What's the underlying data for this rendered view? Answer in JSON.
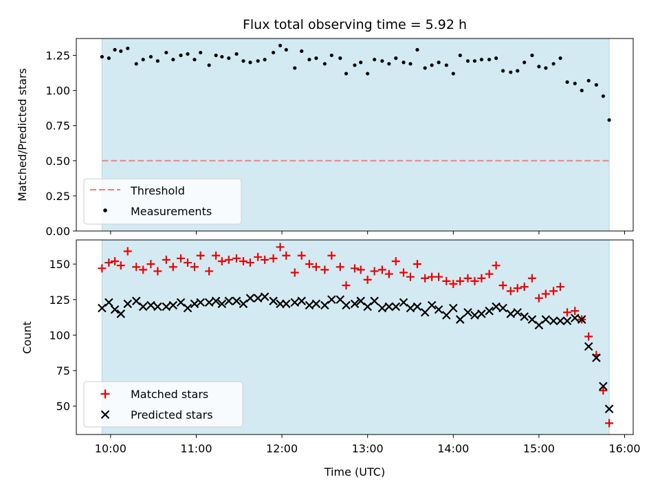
{
  "chart_data": [
    {
      "type": "scatter",
      "title": "Flux total observing time = 5.92 h",
      "xlabel": "",
      "ylabel": "Matched/Predicted stars",
      "xlim": [
        9.6,
        16.1
      ],
      "ylim": [
        0,
        1.37
      ],
      "x_ticks": [
        {
          "value": 10,
          "label": "10:00"
        },
        {
          "value": 11,
          "label": "11:00"
        },
        {
          "value": 12,
          "label": "12:00"
        },
        {
          "value": 13,
          "label": "13:00"
        },
        {
          "value": 14,
          "label": "14:00"
        },
        {
          "value": 15,
          "label": "15:00"
        },
        {
          "value": 16,
          "label": "16:00"
        }
      ],
      "y_ticks": [
        {
          "value": 0,
          "label": "0.00"
        },
        {
          "value": 0.25,
          "label": "0.25"
        },
        {
          "value": 0.5,
          "label": "0.50"
        },
        {
          "value": 0.75,
          "label": "0.75"
        },
        {
          "value": 1.0,
          "label": "1.00"
        },
        {
          "value": 1.25,
          "label": "1.25"
        }
      ],
      "observing_span": [
        9.9,
        15.82
      ],
      "threshold": {
        "name": "Threshold",
        "value": 0.5,
        "color": "#f08080"
      },
      "legend_position": "lower-left",
      "series": [
        {
          "name": "Measurements",
          "marker": "dot",
          "color": "#000000",
          "x": [
            9.9,
            9.98,
            10.05,
            10.12,
            10.2,
            10.3,
            10.38,
            10.47,
            10.55,
            10.65,
            10.73,
            10.82,
            10.9,
            10.98,
            11.05,
            11.15,
            11.23,
            11.3,
            11.38,
            11.47,
            11.55,
            11.63,
            11.72,
            11.8,
            11.9,
            11.98,
            12.05,
            12.15,
            12.23,
            12.32,
            12.4,
            12.5,
            12.58,
            12.68,
            12.75,
            12.85,
            12.92,
            13.0,
            13.08,
            13.17,
            13.25,
            13.33,
            13.42,
            13.5,
            13.58,
            13.67,
            13.75,
            13.83,
            13.92,
            14.0,
            14.08,
            14.17,
            14.25,
            14.33,
            14.42,
            14.5,
            14.58,
            14.67,
            14.75,
            14.83,
            14.92,
            15.0,
            15.08,
            15.17,
            15.25,
            15.33,
            15.42,
            15.5,
            15.58,
            15.67,
            15.75,
            15.82
          ],
          "y": [
            1.24,
            1.23,
            1.29,
            1.28,
            1.3,
            1.19,
            1.22,
            1.24,
            1.21,
            1.27,
            1.22,
            1.25,
            1.26,
            1.22,
            1.27,
            1.18,
            1.25,
            1.24,
            1.23,
            1.26,
            1.21,
            1.2,
            1.21,
            1.22,
            1.27,
            1.32,
            1.29,
            1.16,
            1.28,
            1.22,
            1.23,
            1.19,
            1.25,
            1.23,
            1.12,
            1.18,
            1.2,
            1.12,
            1.22,
            1.21,
            1.19,
            1.23,
            1.2,
            1.19,
            1.29,
            1.16,
            1.18,
            1.2,
            1.18,
            1.12,
            1.25,
            1.21,
            1.21,
            1.22,
            1.22,
            1.23,
            1.14,
            1.13,
            1.14,
            1.2,
            1.25,
            1.17,
            1.16,
            1.19,
            1.23,
            1.06,
            1.05,
            1.0,
            1.07,
            1.04,
            0.96,
            0.79
          ]
        }
      ]
    },
    {
      "type": "scatter",
      "title": "",
      "xlabel": "Time (UTC)",
      "ylabel": "Count",
      "xlim": [
        9.6,
        16.1
      ],
      "ylim": [
        30,
        167
      ],
      "x_ticks": [
        {
          "value": 10,
          "label": "10:00"
        },
        {
          "value": 11,
          "label": "11:00"
        },
        {
          "value": 12,
          "label": "12:00"
        },
        {
          "value": 13,
          "label": "13:00"
        },
        {
          "value": 14,
          "label": "14:00"
        },
        {
          "value": 15,
          "label": "15:00"
        },
        {
          "value": 16,
          "label": "16:00"
        }
      ],
      "y_ticks": [
        {
          "value": 50,
          "label": "50"
        },
        {
          "value": 75,
          "label": "75"
        },
        {
          "value": 100,
          "label": "100"
        },
        {
          "value": 125,
          "label": "125"
        },
        {
          "value": 150,
          "label": "150"
        }
      ],
      "observing_span": [
        9.9,
        15.82
      ],
      "legend_position": "lower-left",
      "series": [
        {
          "name": "Matched stars",
          "marker": "plus",
          "color": "#ee0000",
          "x": [
            9.9,
            9.98,
            10.05,
            10.12,
            10.2,
            10.3,
            10.38,
            10.47,
            10.55,
            10.65,
            10.73,
            10.82,
            10.9,
            10.98,
            11.05,
            11.15,
            11.23,
            11.3,
            11.38,
            11.47,
            11.55,
            11.63,
            11.72,
            11.8,
            11.9,
            11.98,
            12.05,
            12.15,
            12.23,
            12.32,
            12.4,
            12.5,
            12.58,
            12.68,
            12.75,
            12.85,
            12.92,
            13.0,
            13.08,
            13.17,
            13.25,
            13.33,
            13.42,
            13.5,
            13.58,
            13.67,
            13.75,
            13.83,
            13.92,
            14.0,
            14.08,
            14.17,
            14.25,
            14.33,
            14.42,
            14.5,
            14.58,
            14.67,
            14.75,
            14.83,
            14.92,
            15.0,
            15.08,
            15.17,
            15.25,
            15.33,
            15.42,
            15.5,
            15.58,
            15.67,
            15.75,
            15.82
          ],
          "y": [
            147,
            151,
            152,
            149,
            159,
            148,
            146,
            150,
            145,
            153,
            148,
            154,
            151,
            148,
            156,
            145,
            156,
            152,
            153,
            154,
            152,
            151,
            155,
            153,
            154,
            162,
            156,
            144,
            156,
            150,
            148,
            146,
            156,
            148,
            135,
            147,
            146,
            139,
            145,
            146,
            143,
            152,
            144,
            141,
            150,
            140,
            141,
            141,
            138,
            136,
            138,
            140,
            138,
            140,
            143,
            149,
            135,
            131,
            133,
            134,
            140,
            126,
            129,
            131,
            134,
            116,
            117,
            111,
            99,
            86,
            61,
            38
          ]
        },
        {
          "name": "Predicted stars",
          "marker": "x",
          "color": "#000000",
          "x": [
            9.9,
            9.98,
            10.05,
            10.12,
            10.2,
            10.3,
            10.38,
            10.47,
            10.55,
            10.65,
            10.73,
            10.82,
            10.9,
            10.98,
            11.05,
            11.15,
            11.23,
            11.3,
            11.38,
            11.47,
            11.55,
            11.63,
            11.72,
            11.8,
            11.9,
            11.98,
            12.05,
            12.15,
            12.23,
            12.32,
            12.4,
            12.5,
            12.58,
            12.68,
            12.75,
            12.85,
            12.92,
            13.0,
            13.08,
            13.17,
            13.25,
            13.33,
            13.42,
            13.5,
            13.58,
            13.67,
            13.75,
            13.83,
            13.92,
            14.0,
            14.08,
            14.17,
            14.25,
            14.33,
            14.42,
            14.5,
            14.58,
            14.67,
            14.75,
            14.83,
            14.92,
            15.0,
            15.08,
            15.17,
            15.25,
            15.33,
            15.42,
            15.5,
            15.58,
            15.67,
            15.75,
            15.82
          ],
          "y": [
            119,
            123,
            118,
            115,
            122,
            124,
            120,
            121,
            120,
            120,
            121,
            123,
            119,
            122,
            123,
            123,
            124,
            122,
            124,
            124,
            122,
            126,
            126,
            127,
            124,
            122,
            122,
            123,
            124,
            121,
            122,
            121,
            125,
            125,
            121,
            122,
            124,
            120,
            124,
            119,
            120,
            120,
            123,
            119,
            120,
            116,
            121,
            118,
            114,
            119,
            111,
            116,
            114,
            115,
            117,
            120,
            119,
            115,
            116,
            113,
            111,
            107,
            111,
            110,
            110,
            110,
            112,
            111,
            92,
            84,
            64,
            48
          ]
        }
      ]
    }
  ]
}
